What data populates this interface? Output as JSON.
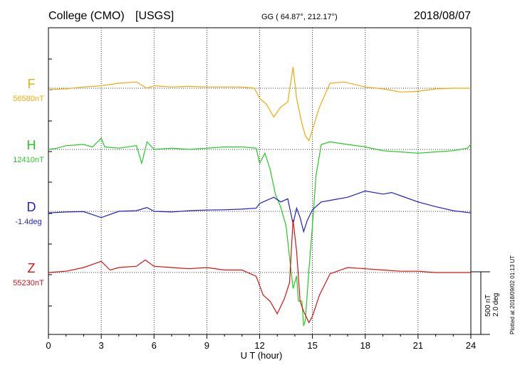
{
  "header": {
    "station": "College (CMO)",
    "network": "[USGS]",
    "coords": "GG ( 64.87°, 212.17°)",
    "date": "2018/08/07"
  },
  "side_note": "Plotted at 2018/09/02 01:13 UT",
  "scale_note": "500 nT\n2.0 deg",
  "chart_data": {
    "type": "line",
    "xlabel": "U T (hour)",
    "xlim": [
      0,
      24
    ],
    "x_ticks": [
      "0",
      "3",
      "6",
      "9",
      "12",
      "15",
      "18",
      "21",
      "24"
    ],
    "grid": "dotted vertical at 3-hour intervals",
    "scale_nT": 500,
    "scale_deg": 2.0,
    "series": [
      {
        "name": "F",
        "baseline_label": "56580nT",
        "color": "#f0aa0a",
        "x": [
          0,
          1,
          2,
          3,
          4,
          5,
          5.6,
          6,
          7,
          8,
          9,
          10,
          11,
          11.7,
          12,
          12.4,
          12.8,
          13.2,
          13.6,
          13.9,
          14.1,
          14.4,
          14.6,
          14.8,
          15,
          15.4,
          16,
          16.8,
          18,
          19,
          20,
          21,
          22,
          23,
          24
        ],
        "y": [
          56570,
          56575,
          56590,
          56600,
          56620,
          56630,
          56580,
          56600,
          56590,
          56595,
          56590,
          56590,
          56590,
          56580,
          56500,
          56450,
          56350,
          56430,
          56470,
          56750,
          56500,
          56300,
          56200,
          56160,
          56250,
          56430,
          56620,
          56630,
          56590,
          56575,
          56550,
          56555,
          56575,
          56580,
          56580
        ]
      },
      {
        "name": "H",
        "baseline_label": "12410nT",
        "color": "#22cc22",
        "x": [
          0,
          0.5,
          1,
          2,
          2.5,
          3,
          3.2,
          4,
          5,
          5.3,
          5.6,
          6,
          7,
          8,
          9,
          10,
          11,
          11.8,
          12,
          12.3,
          12.6,
          12.9,
          13.2,
          13.5,
          13.7,
          13.9,
          14.1,
          14.2,
          14.4,
          14.5,
          14.6,
          14.8,
          15,
          15.2,
          15.5,
          16,
          17,
          18,
          19,
          20,
          21,
          22,
          23,
          23.8,
          24
        ],
        "y": [
          12410,
          12420,
          12440,
          12450,
          12430,
          12500,
          12430,
          12420,
          12440,
          12300,
          12470,
          12410,
          12420,
          12410,
          12420,
          12430,
          12430,
          12420,
          12300,
          12380,
          12250,
          12050,
          11950,
          11800,
          11550,
          11300,
          11400,
          11200,
          11200,
          11000,
          11050,
          11450,
          11800,
          12200,
          12450,
          12470,
          12450,
          12430,
          12400,
          12390,
          12380,
          12390,
          12400,
          12420,
          12450
        ]
      },
      {
        "name": "D",
        "baseline_label": "-1.4deg",
        "color": "#1f1fcc",
        "x": [
          0,
          1,
          2,
          3,
          4,
          5,
          5.6,
          6,
          7,
          8,
          9,
          10,
          11,
          11.8,
          12,
          12.4,
          12.8,
          13.2,
          13.6,
          13.9,
          14.1,
          14.3,
          14.5,
          14.7,
          15,
          15.5,
          16,
          17,
          18,
          19,
          19.5,
          20,
          21,
          22,
          23,
          24
        ],
        "y": [
          -1.45,
          -1.42,
          -1.41,
          -1.6,
          -1.4,
          -1.38,
          -1.28,
          -1.4,
          -1.42,
          -1.38,
          -1.36,
          -1.35,
          -1.33,
          -1.3,
          -1.15,
          -1.05,
          -0.95,
          -1.1,
          -1.0,
          -1.8,
          -1.3,
          -1.6,
          -2.05,
          -1.7,
          -1.35,
          -1.1,
          -1.05,
          -0.95,
          -0.75,
          -0.85,
          -0.8,
          -0.9,
          -1.1,
          -1.25,
          -1.38,
          -1.45
        ]
      },
      {
        "name": "Z",
        "baseline_label": "55230nT",
        "color": "#dd1111",
        "x": [
          0,
          1,
          2,
          3,
          3.5,
          4,
          5,
          5.5,
          6,
          7,
          8,
          9,
          10,
          11,
          11.8,
          12.2,
          12.6,
          13,
          13.4,
          13.7,
          13.9,
          14.1,
          14.3,
          14.5,
          14.8,
          15,
          15.4,
          16,
          17,
          18,
          19,
          20,
          21,
          22,
          23,
          24
        ],
        "y": [
          55230,
          55240,
          55270,
          55320,
          55250,
          55270,
          55280,
          55330,
          55280,
          55270,
          55260,
          55270,
          55250,
          55250,
          55200,
          55050,
          55000,
          54900,
          55020,
          55150,
          55650,
          55400,
          55000,
          54920,
          54830,
          54880,
          55050,
          55220,
          55270,
          55260,
          55250,
          55240,
          55240,
          55230,
          55230,
          55230
        ]
      }
    ]
  }
}
